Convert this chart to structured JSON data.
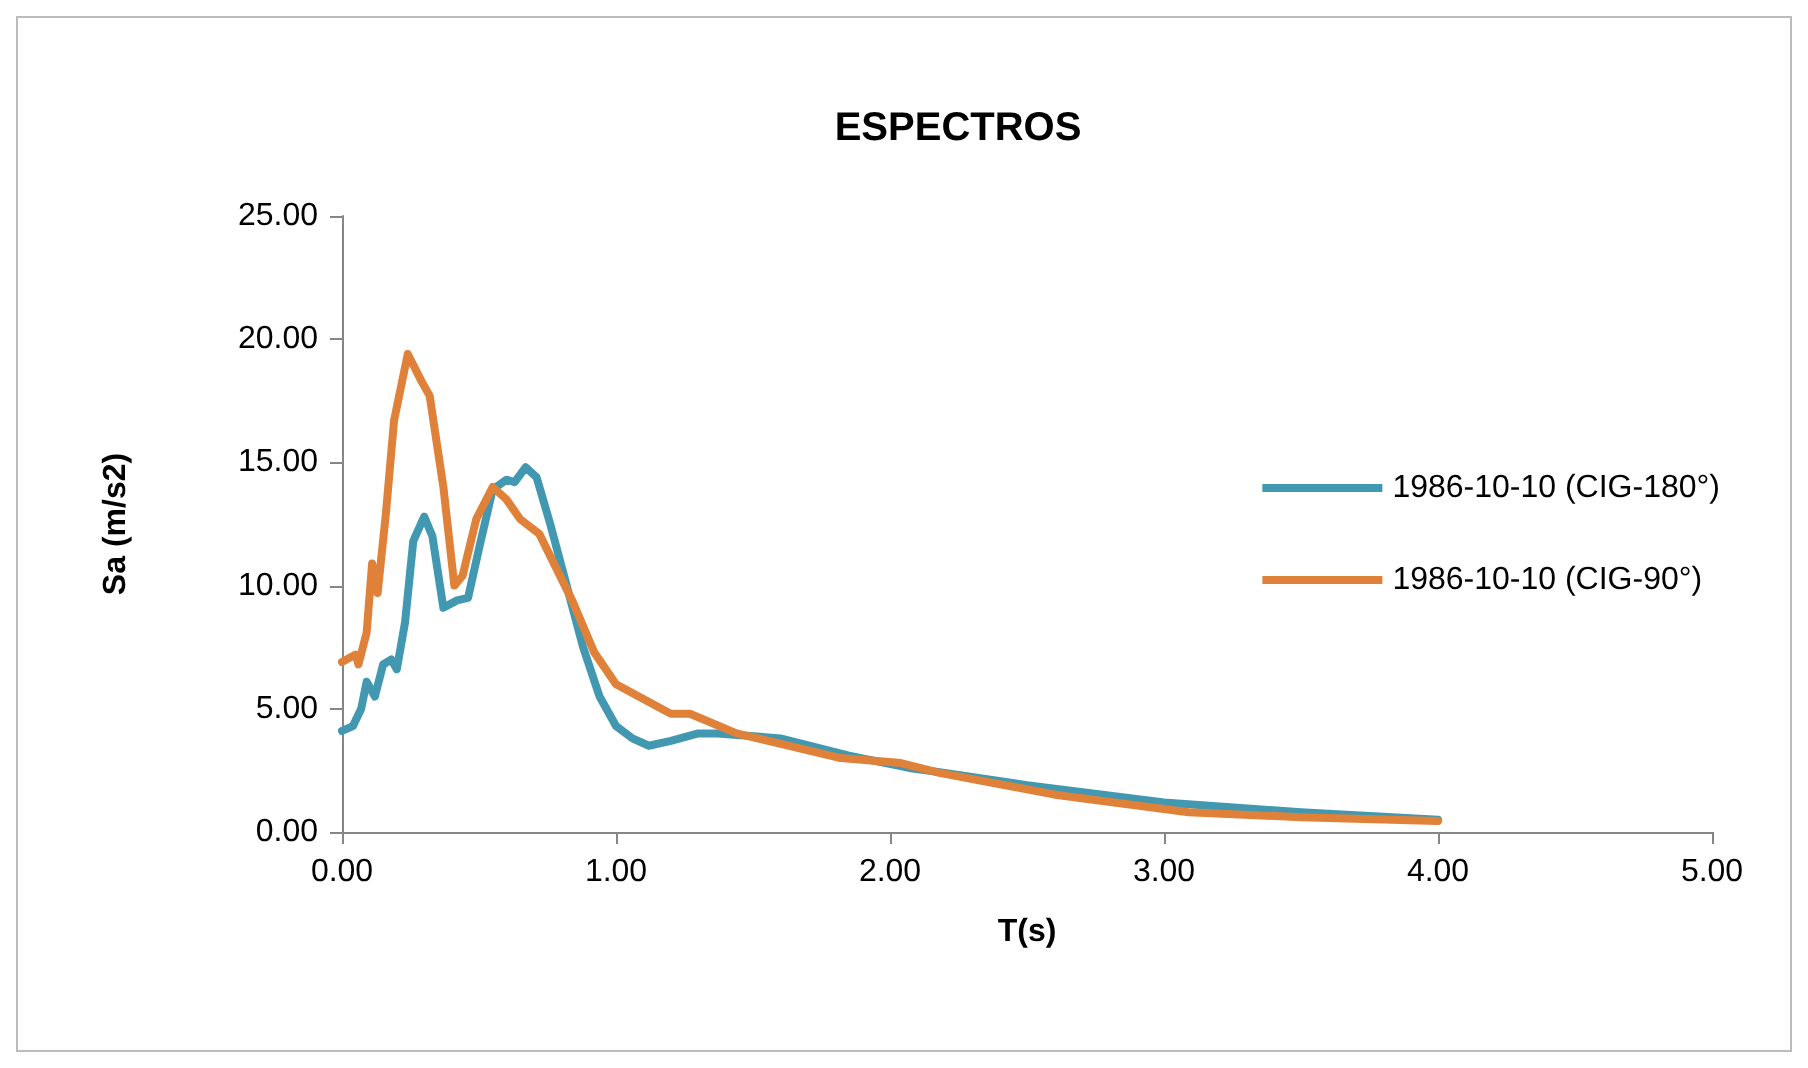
{
  "chart_data": {
    "type": "line",
    "title": "ESPECTROS",
    "xlabel": "T(s)",
    "ylabel": "Sa (m/s2)",
    "xlim": [
      0,
      5
    ],
    "xticks": [
      {
        "value": 0,
        "label": "0.00"
      },
      {
        "value": 1,
        "label": "1.00"
      },
      {
        "value": 2,
        "label": "2.00"
      },
      {
        "value": 3,
        "label": "3.00"
      },
      {
        "value": 4,
        "label": "4.00"
      },
      {
        "value": 5,
        "label": "5.00"
      }
    ],
    "ylim": [
      0,
      25
    ],
    "yticks": [
      {
        "value": 0,
        "label": "0.00"
      },
      {
        "value": 5,
        "label": "5.00"
      },
      {
        "value": 10,
        "label": "10.00"
      },
      {
        "value": 15,
        "label": "15.00"
      },
      {
        "value": 20,
        "label": "20.00"
      },
      {
        "value": 25,
        "label": "25.00"
      }
    ],
    "grid": false,
    "legend": "right",
    "marker": "none",
    "line_style": "solid",
    "series": [
      {
        "name": "1986-10-10 (CIG-180°)",
        "color": "#4198b0",
        "x": [
          0,
          0.04,
          0.07,
          0.09,
          0.12,
          0.15,
          0.18,
          0.2,
          0.23,
          0.26,
          0.3,
          0.33,
          0.37,
          0.42,
          0.46,
          0.5,
          0.55,
          0.6,
          0.63,
          0.67,
          0.71,
          0.76,
          0.82,
          0.88,
          0.94,
          1.0,
          1.06,
          1.12,
          1.2,
          1.3,
          1.37,
          1.6,
          1.85,
          2.07,
          2.2,
          2.5,
          3.0,
          3.5,
          4.0
        ],
        "values": [
          4.1,
          4.3,
          5.0,
          6.1,
          5.5,
          6.8,
          7.0,
          6.6,
          8.5,
          11.8,
          12.8,
          12.0,
          9.1,
          9.4,
          9.5,
          11.5,
          13.9,
          14.3,
          14.2,
          14.8,
          14.4,
          12.5,
          10.0,
          7.5,
          5.5,
          4.3,
          3.8,
          3.5,
          3.7,
          4.0,
          4.0,
          3.8,
          3.1,
          2.6,
          2.4,
          1.9,
          1.2,
          0.8,
          0.5
        ]
      },
      {
        "name": "1986-10-10 (CIG-90°)",
        "color": "#e0813a",
        "x": [
          0,
          0.05,
          0.06,
          0.09,
          0.11,
          0.13,
          0.16,
          0.19,
          0.24,
          0.29,
          0.32,
          0.37,
          0.41,
          0.44,
          0.49,
          0.55,
          0.6,
          0.65,
          0.72,
          0.84,
          0.92,
          1.0,
          1.1,
          1.2,
          1.27,
          1.44,
          1.82,
          2.04,
          2.18,
          2.61,
          3.09,
          3.5,
          4.0
        ],
        "values": [
          6.9,
          7.2,
          6.8,
          8.1,
          10.9,
          9.7,
          12.9,
          16.7,
          19.4,
          18.3,
          17.7,
          14.0,
          10.0,
          10.4,
          12.7,
          14.0,
          13.5,
          12.7,
          12.1,
          9.4,
          7.3,
          6.0,
          5.4,
          4.8,
          4.8,
          4.0,
          3.0,
          2.8,
          2.4,
          1.5,
          0.8,
          0.6,
          0.45
        ]
      }
    ]
  }
}
